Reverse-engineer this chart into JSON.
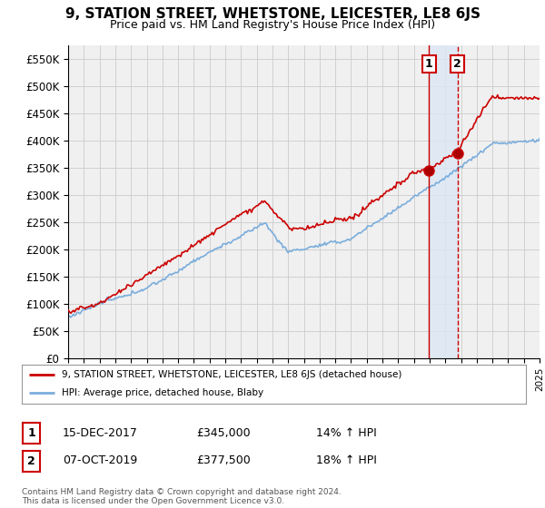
{
  "title": "9, STATION STREET, WHETSTONE, LEICESTER, LE8 6JS",
  "subtitle": "Price paid vs. HM Land Registry's House Price Index (HPI)",
  "ylim": [
    0,
    575000
  ],
  "yticks": [
    0,
    50000,
    100000,
    150000,
    200000,
    250000,
    300000,
    350000,
    400000,
    450000,
    500000,
    550000
  ],
  "ytick_labels": [
    "£0",
    "£50K",
    "£100K",
    "£150K",
    "£200K",
    "£250K",
    "£300K",
    "£350K",
    "£400K",
    "£450K",
    "£500K",
    "£550K"
  ],
  "bg_color": "#ffffff",
  "plot_bg_color": "#f0f0f0",
  "grid_color": "#cccccc",
  "red_color": "#cc0000",
  "blue_color": "#7aaddc",
  "shade_color": "#dce8f5",
  "sale1_year": 2017.96,
  "sale1_price": 345000,
  "sale2_year": 2019.77,
  "sale2_price": 377500,
  "legend_line1": "9, STATION STREET, WHETSTONE, LEICESTER, LE8 6JS (detached house)",
  "legend_line2": "HPI: Average price, detached house, Blaby",
  "table_row1": [
    "1",
    "15-DEC-2017",
    "£345,000",
    "14% ↑ HPI"
  ],
  "table_row2": [
    "2",
    "07-OCT-2019",
    "£377,500",
    "18% ↑ HPI"
  ],
  "footer": "Contains HM Land Registry data © Crown copyright and database right 2024.\nThis data is licensed under the Open Government Licence v3.0.",
  "xstart": 1995,
  "xend": 2025
}
